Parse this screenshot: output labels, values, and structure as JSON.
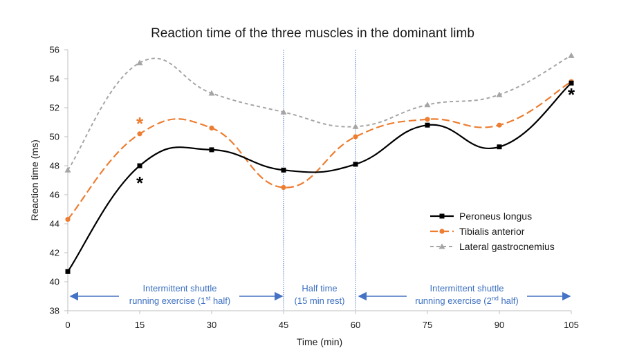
{
  "chart_data": {
    "type": "line",
    "title": "Reaction time of the three muscles in the dominant limb",
    "xlabel": "Time (min)",
    "ylabel": "Reaction time (ms)",
    "x": [
      0,
      15,
      30,
      45,
      60,
      75,
      90,
      105
    ],
    "xlim": [
      0,
      105
    ],
    "ylim": [
      38,
      56
    ],
    "x_ticks": [
      "0",
      "15",
      "30",
      "45",
      "60",
      "75",
      "90",
      "105"
    ],
    "y_ticks": [
      "38",
      "40",
      "42",
      "44",
      "46",
      "48",
      "50",
      "52",
      "54",
      "56"
    ],
    "grid": false,
    "legend_position": "right",
    "series": [
      {
        "name": "Peroneus longus",
        "values": [
          40.7,
          48.0,
          49.1,
          47.7,
          48.1,
          50.8,
          49.3,
          53.7
        ],
        "color": "#000000",
        "marker": "square",
        "line": "solid"
      },
      {
        "name": "Tibialis anterior",
        "values": [
          44.3,
          50.2,
          50.6,
          46.5,
          50.0,
          51.2,
          50.8,
          53.8
        ],
        "color": "#ed7d31",
        "marker": "circle",
        "line": "dashed"
      },
      {
        "name": "Lateral gastrocnemius",
        "values": [
          47.7,
          55.1,
          53.0,
          51.7,
          50.7,
          52.2,
          52.9,
          55.6
        ],
        "color": "#a5a5a5",
        "marker": "triangle",
        "line": "dotted"
      }
    ],
    "vertical_lines": [
      45,
      60
    ],
    "annotations": {
      "segment1_line1": "Intermittent shuttle",
      "segment1_line2_pre": "running exercise (1",
      "segment1_sup": "st",
      "segment1_line2_post": " half)",
      "segment2_line1": "Half time",
      "segment2_line2": "(15 min rest)",
      "segment3_line1": "Intermittent shuttle",
      "segment3_line2_pre": "running exercise (2",
      "segment3_sup": "nd",
      "segment3_line2_post": " half)",
      "star": "*"
    },
    "significance_markers": [
      {
        "x": 15,
        "y": 46.9,
        "color": "#000000"
      },
      {
        "x": 15,
        "y": 51.0,
        "color": "#ed7d31"
      },
      {
        "x": 105,
        "y": 53.0,
        "color": "#000000"
      }
    ],
    "annotation_color": "#3b6fc1"
  }
}
